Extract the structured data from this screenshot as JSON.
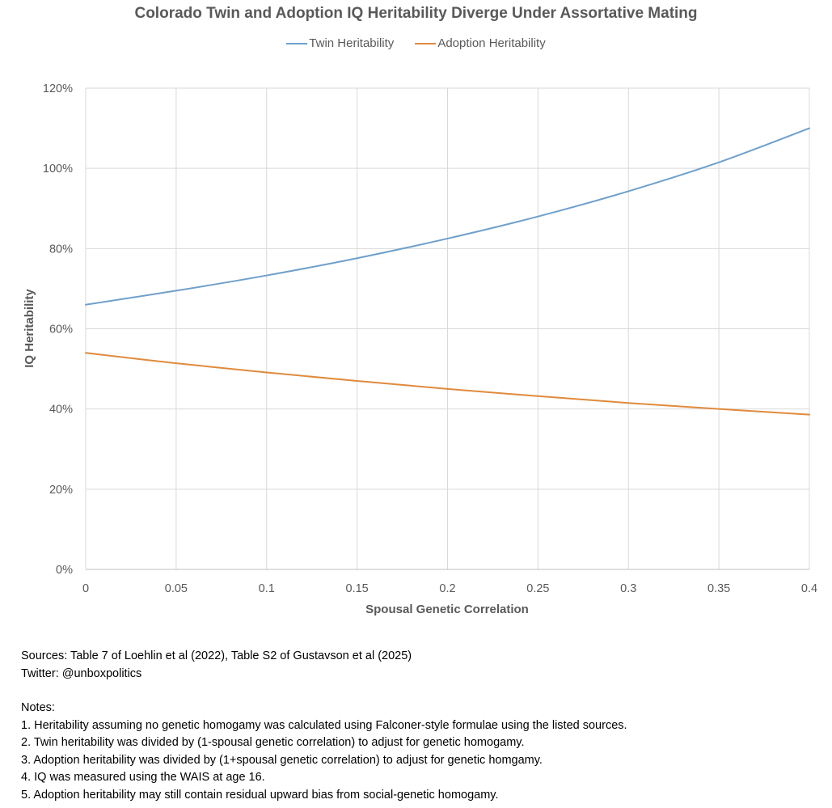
{
  "chart_data": {
    "type": "line",
    "title": "Colorado Twin and Adoption IQ Heritability Diverge Under Assortative Mating",
    "xlabel": "Spousal Genetic Correlation",
    "ylabel": "IQ Heritability",
    "xlim": [
      0,
      0.4
    ],
    "ylim": [
      0,
      1.2
    ],
    "x_ticks": [
      "0",
      "0.05",
      "0.1",
      "0.15",
      "0.2",
      "0.25",
      "0.3",
      "0.35",
      "0.4"
    ],
    "y_ticks": [
      "0%",
      "20%",
      "40%",
      "60%",
      "80%",
      "100%",
      "120%"
    ],
    "grid": true,
    "legend_position": "top",
    "x": [
      0,
      0.05,
      0.1,
      0.15,
      0.2,
      0.25,
      0.3,
      0.35,
      0.4
    ],
    "series": [
      {
        "name": "Twin Heritability",
        "color": "#6fa0cb",
        "values": [
          0.66,
          0.695,
          0.733,
          0.776,
          0.825,
          0.88,
          0.943,
          1.015,
          1.1
        ]
      },
      {
        "name": "Adoption Heritability",
        "color": "#e08a3c",
        "values": [
          0.54,
          0.514,
          0.491,
          0.47,
          0.45,
          0.432,
          0.415,
          0.4,
          0.386
        ]
      }
    ]
  },
  "footer": {
    "sources": "Sources: Table 7 of Loehlin et al (2022), Table S2 of Gustavson et al (2025)",
    "twitter": "Twitter: @unboxpolitics",
    "notes_title": "Notes:",
    "notes": [
      "1. Heritability assuming no genetic homogamy was calculated using Falconer-style formulae using the listed sources.",
      "2. Twin heritability was divided by (1-spousal genetic correlation) to adjust for genetic homogamy.",
      "3. Adoption heritability was divided by (1+spousal genetic correlation) to adjust for genetic homgamy.",
      "4. IQ was measured using the WAIS at age 16.",
      "5. Adoption heritability may still contain residual upward bias from social-genetic homogamy."
    ]
  }
}
